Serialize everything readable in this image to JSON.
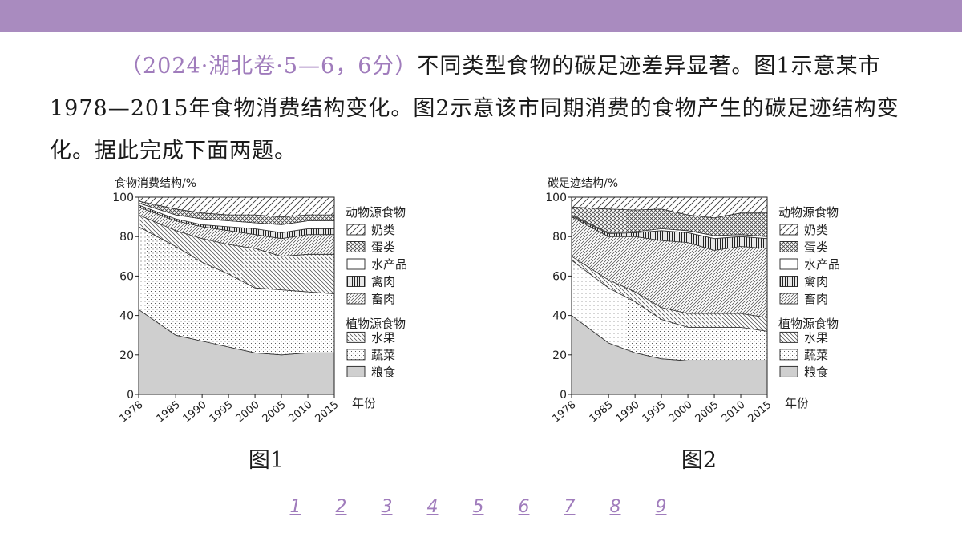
{
  "question": {
    "source": "（2024·湖北卷·5—6，6分）",
    "text": "不同类型食物的碳足迹差异显著。图1示意某市1978—2015年食物消费结构变化。图2示意该市同期消费的食物产生的碳足迹结构变化。据此完成下面两题。"
  },
  "legend": {
    "animal_group": "动物源食物",
    "plant_group": "植物源食物",
    "items": [
      {
        "label": "奶类",
        "pattern": "diag-light"
      },
      {
        "label": "蛋类",
        "pattern": "cross"
      },
      {
        "label": "水产品",
        "pattern": "white"
      },
      {
        "label": "禽肉",
        "pattern": "vert"
      },
      {
        "label": "畜肉",
        "pattern": "diag-dense"
      },
      {
        "label": "水果",
        "pattern": "back-diag"
      },
      {
        "label": "蔬菜",
        "pattern": "dots"
      },
      {
        "label": "粮食",
        "pattern": "gray"
      }
    ]
  },
  "chart_data": [
    {
      "type": "area",
      "stacked": true,
      "caption": "图1",
      "ylabel": "食物消费结构/%",
      "xlabel": "年份",
      "x": [
        1978,
        1985,
        1990,
        1995,
        2000,
        2005,
        2010,
        2015
      ],
      "ylim": [
        0,
        100
      ],
      "yticks": [
        0,
        20,
        40,
        60,
        80,
        100
      ],
      "stack_order_bottom_to_top": [
        "粮食",
        "蔬菜",
        "水果",
        "畜肉",
        "禽肉",
        "水产品",
        "蛋类",
        "奶类"
      ],
      "series": [
        {
          "name": "粮食",
          "values": [
            43,
            30,
            27,
            24,
            21,
            20,
            21,
            21
          ]
        },
        {
          "name": "蔬菜",
          "values": [
            42,
            45,
            40,
            37,
            33,
            33,
            31,
            30
          ]
        },
        {
          "name": "水果",
          "values": [
            6,
            8,
            12,
            15,
            20,
            17,
            19,
            20
          ]
        },
        {
          "name": "畜肉",
          "values": [
            4,
            5,
            6,
            7,
            7,
            9,
            10,
            10
          ]
        },
        {
          "name": "禽肉",
          "values": [
            1,
            1,
            1,
            2,
            3,
            3,
            3,
            3
          ]
        },
        {
          "name": "水产品",
          "values": [
            1,
            2,
            3,
            3,
            3,
            4,
            4,
            4
          ]
        },
        {
          "name": "蛋类",
          "values": [
            1,
            3,
            3,
            3,
            4,
            4,
            3,
            3
          ]
        },
        {
          "name": "奶类",
          "values": [
            2,
            6,
            8,
            9,
            9,
            10,
            9,
            9
          ]
        }
      ]
    },
    {
      "type": "area",
      "stacked": true,
      "caption": "图2",
      "ylabel": "碳足迹结构/%",
      "xlabel": "年份",
      "x": [
        1978,
        1985,
        1990,
        1995,
        2000,
        2005,
        2010,
        2015
      ],
      "ylim": [
        0,
        100
      ],
      "yticks": [
        0,
        20,
        40,
        60,
        80,
        100
      ],
      "stack_order_bottom_to_top": [
        "粮食",
        "蔬菜",
        "水果",
        "畜肉",
        "禽肉",
        "水产品",
        "蛋类",
        "奶类"
      ],
      "series": [
        {
          "name": "粮食",
          "values": [
            40,
            26,
            21,
            18,
            17,
            17,
            17,
            17
          ]
        },
        {
          "name": "蔬菜",
          "values": [
            28,
            28,
            26,
            20,
            17,
            17,
            17,
            15
          ]
        },
        {
          "name": "水果",
          "values": [
            2,
            4,
            5,
            6,
            7,
            7,
            7,
            7
          ]
        },
        {
          "name": "畜肉",
          "values": [
            20,
            22,
            28,
            34,
            36,
            32,
            34,
            35
          ]
        },
        {
          "name": "禽肉",
          "values": [
            0.5,
            1.5,
            2,
            5,
            5,
            6,
            5,
            5
          ]
        },
        {
          "name": "水产品",
          "values": [
            0.5,
            0.5,
            0.5,
            1,
            1,
            1.5,
            1,
            1
          ]
        },
        {
          "name": "蛋类",
          "values": [
            4,
            12,
            11,
            10,
            8,
            9,
            11,
            12
          ]
        },
        {
          "name": "奶类",
          "values": [
            5,
            6,
            6.5,
            6,
            9,
            10.5,
            8,
            8
          ]
        }
      ]
    }
  ],
  "captions": {
    "fig1": "图1",
    "fig2": "图2"
  },
  "pager": [
    "1",
    "2",
    "3",
    "4",
    "5",
    "6",
    "7",
    "8",
    "9"
  ]
}
